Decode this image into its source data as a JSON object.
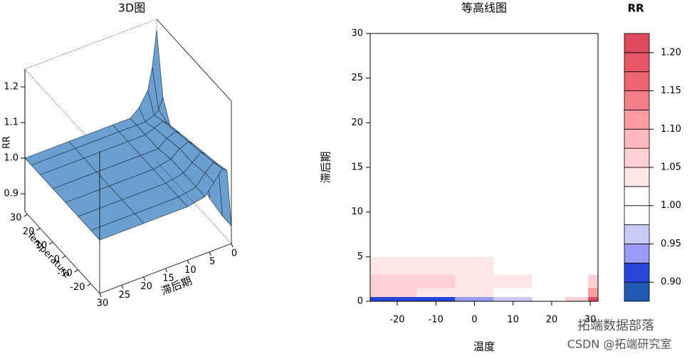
{
  "chart_data": [
    {
      "type": "surface3d",
      "title": "3D图",
      "xlabel": "Temperature",
      "ylabel": "滞后期",
      "zlabel": "RR",
      "x": [
        -27,
        -20,
        -10,
        0,
        10,
        20,
        27,
        32
      ],
      "y": [
        0,
        1,
        2,
        4,
        6,
        10,
        20,
        30
      ],
      "z": [
        [
          0.9,
          0.9,
          0.91,
          0.93,
          0.95,
          0.98,
          1.05,
          1.22
        ],
        [
          1.06,
          1.05,
          1.04,
          1.03,
          1.02,
          1.01,
          1.02,
          1.12
        ],
        [
          1.07,
          1.06,
          1.05,
          1.04,
          1.03,
          1.02,
          1.01,
          1.06
        ],
        [
          1.04,
          1.04,
          1.03,
          1.03,
          1.02,
          1.01,
          1.0,
          1.02
        ],
        [
          1.01,
          1.01,
          1.01,
          1.01,
          1.0,
          1.0,
          1.0,
          1.0
        ],
        [
          1.0,
          1.0,
          1.0,
          1.0,
          1.0,
          1.0,
          1.0,
          1.0
        ],
        [
          1.0,
          1.0,
          1.0,
          1.0,
          1.0,
          1.0,
          1.0,
          1.0
        ],
        [
          1.0,
          1.0,
          1.0,
          1.0,
          1.0,
          1.0,
          1.0,
          1.0
        ]
      ],
      "xlim": [
        -27,
        32
      ],
      "ylim": [
        0,
        30
      ],
      "zlim": [
        0.85,
        1.25
      ],
      "xticks": [
        30,
        20,
        10,
        0,
        -10,
        -20
      ],
      "yticks": [
        30,
        25,
        20,
        15,
        10,
        5,
        0
      ],
      "zticks": [
        {
          "value": 0.9,
          "label": "0.9"
        },
        {
          "value": 1,
          "label": "1.0"
        },
        {
          "value": 1.1,
          "label": "1.1"
        },
        {
          "value": 1.2,
          "label": "1.2"
        }
      ],
      "color": "#6a9fcf"
    },
    {
      "type": "contour",
      "title": "等高线图",
      "xlabel": "温度",
      "ylabel": "滞后期",
      "x": [
        -27,
        -20,
        -10,
        0,
        10,
        20,
        27,
        32
      ],
      "y": [
        0,
        1,
        2,
        4,
        6,
        10,
        20,
        30
      ],
      "z": [
        [
          0.9,
          0.9,
          0.91,
          0.93,
          0.95,
          0.98,
          1.05,
          1.22
        ],
        [
          1.06,
          1.05,
          1.04,
          1.03,
          1.02,
          1.01,
          1.02,
          1.12
        ],
        [
          1.07,
          1.06,
          1.05,
          1.04,
          1.03,
          1.02,
          1.01,
          1.06
        ],
        [
          1.04,
          1.04,
          1.03,
          1.03,
          1.02,
          1.01,
          1.0,
          1.02
        ],
        [
          1.01,
          1.01,
          1.01,
          1.01,
          1.0,
          1.0,
          1.0,
          1.0
        ],
        [
          1.0,
          1.0,
          1.0,
          1.0,
          1.0,
          1.0,
          1.0,
          1.0
        ],
        [
          1.0,
          1.0,
          1.0,
          1.0,
          1.0,
          1.0,
          1.0,
          1.0
        ],
        [
          1.0,
          1.0,
          1.0,
          1.0,
          1.0,
          1.0,
          1.0,
          1.0
        ]
      ],
      "xlim": [
        -27,
        32
      ],
      "ylim": [
        0,
        30
      ],
      "xticks": [
        -20,
        -10,
        0,
        10,
        20,
        30
      ],
      "yticks": [
        0,
        5,
        10,
        15,
        20,
        25,
        30
      ],
      "levels": [
        0.875,
        0.9,
        0.925,
        0.95,
        0.975,
        1.0,
        1.025,
        1.05,
        1.075,
        1.1,
        1.125,
        1.15,
        1.175,
        1.2,
        1.225
      ],
      "colors": [
        "#1f5bb5",
        "#2745d8",
        "#9a9af5",
        "#cacaf8",
        "#ffffff",
        "#ffffff",
        "#ffe6e8",
        "#ffd0d3",
        "#ffb8bd",
        "#fc9ca2",
        "#f47f88",
        "#ee6470",
        "#e85566",
        "#e04a5e"
      ],
      "colorbar_title": "RR",
      "colorbar_ticks": [
        {
          "value": 0.9,
          "label": "0.90"
        },
        {
          "value": 0.95,
          "label": "0.95"
        },
        {
          "value": 1,
          "label": "1.00"
        },
        {
          "value": 1.05,
          "label": "1.05"
        },
        {
          "value": 1.1,
          "label": "1.10"
        },
        {
          "value": 1.15,
          "label": "1.15"
        },
        {
          "value": 1.2,
          "label": "1.20"
        }
      ]
    }
  ],
  "watermark": [
    "拓端数据部落",
    "CSDN @拓端研究室"
  ]
}
